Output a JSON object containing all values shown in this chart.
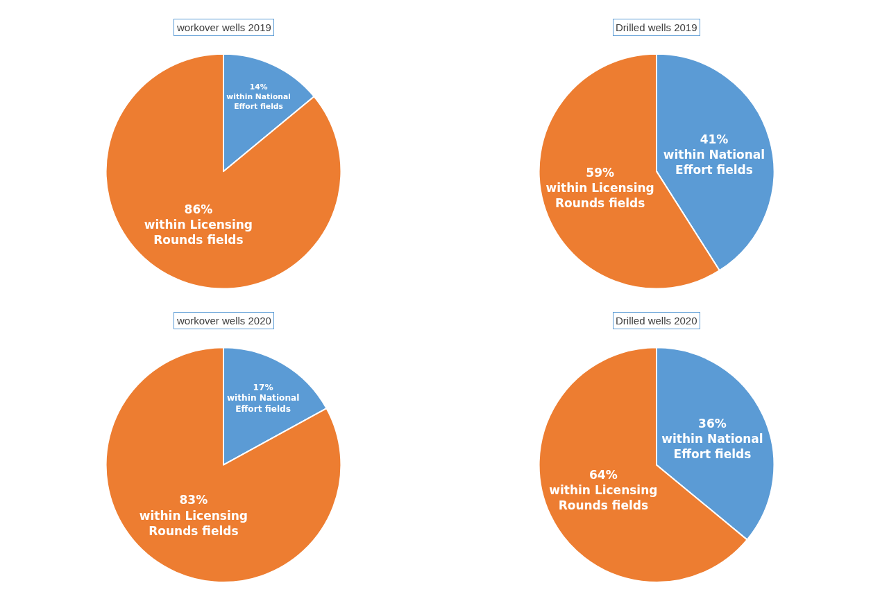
{
  "chart_data": [
    {
      "type": "pie",
      "title": "workover wells 2019",
      "categories": [
        "within National Effort fields",
        "within Licensing Rounds fields"
      ],
      "values": [
        14,
        86
      ],
      "value_labels": [
        "14%",
        "86%"
      ],
      "colors": [
        "#5b9bd5",
        "#ed7d31"
      ],
      "legend": false
    },
    {
      "type": "pie",
      "title": "Drilled wells 2019",
      "categories": [
        "within National Effort fields",
        "within Licensing Rounds fields"
      ],
      "values": [
        41,
        59
      ],
      "value_labels": [
        "41%",
        "59%"
      ],
      "colors": [
        "#5b9bd5",
        "#ed7d31"
      ],
      "legend": false
    },
    {
      "type": "pie",
      "title": "workover wells 2020",
      "categories": [
        "within National Effort fields",
        "within Licensing Rounds fields"
      ],
      "values": [
        17,
        83
      ],
      "value_labels": [
        "17%",
        "83%"
      ],
      "colors": [
        "#5b9bd5",
        "#ed7d31"
      ],
      "legend": false
    },
    {
      "type": "pie",
      "title": "Drilled wells 2020",
      "categories": [
        "within National Effort fields",
        "within Licensing Rounds fields"
      ],
      "values": [
        36,
        64
      ],
      "value_labels": [
        "36%",
        "64%"
      ],
      "colors": [
        "#5b9bd5",
        "#ed7d31"
      ],
      "legend": false
    }
  ]
}
